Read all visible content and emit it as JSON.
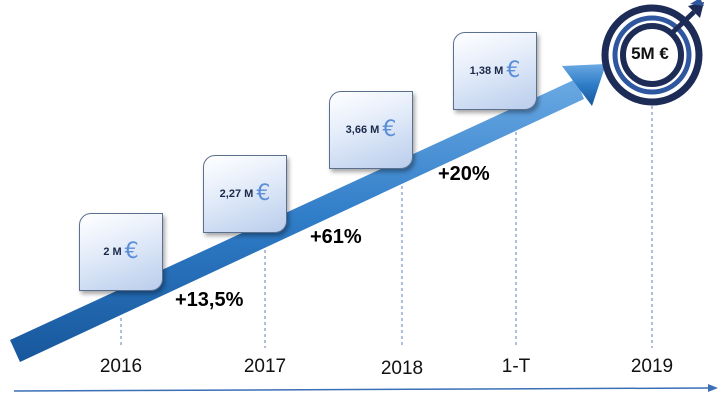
{
  "milestones": [
    {
      "period": "2016",
      "value": "2 M"
    },
    {
      "period": "2017",
      "value": "2,27 M"
    },
    {
      "period": "2018",
      "value": "3,66 M"
    },
    {
      "period": "1-T",
      "value": "1,38 M"
    }
  ],
  "growth": [
    "+13,5%",
    "+61%",
    "+20%"
  ],
  "target": {
    "period": "2019",
    "value": "5M €"
  },
  "currency_symbol": "€",
  "colors": {
    "arrow_light": "#4f95d6",
    "arrow_dark": "#1b5fa8",
    "target_dark": "#1d2b57",
    "target_mid": "#2a4a8a",
    "axis": "#3b6fb6",
    "euro": "#5b8ed8"
  }
}
